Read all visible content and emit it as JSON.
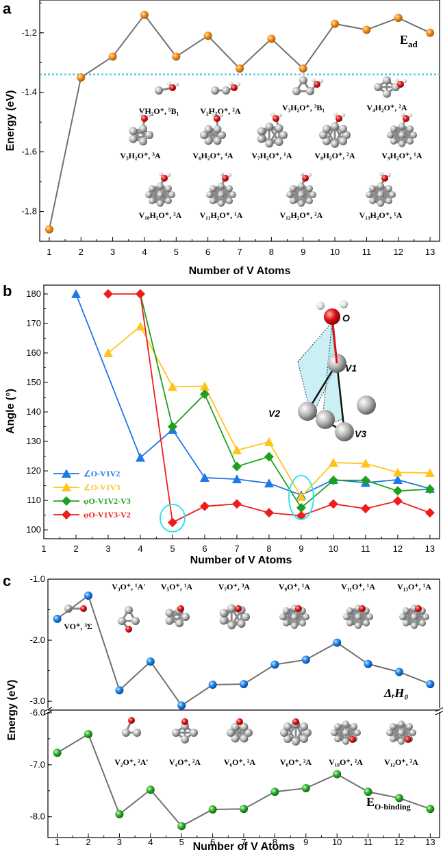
{
  "panels": {
    "a": {
      "label": "a",
      "annotation": "E",
      "annotation_sub": "ad",
      "molecule_labels": [
        "VH₂O⁺, ⁵B₁",
        "V₂H₂O⁺, ²A",
        "V₃H₂O⁺, ³B₁",
        "V₄H₂O⁺, ²A",
        "V₅H₂O⁺, ³A",
        "V₆H₂O⁺, ⁴A",
        "V₇H₂O⁺, ¹A",
        "V₈H₂O⁺, ²A",
        "V₉H₂O⁺, ¹A",
        "V₁₀H₂O⁺, ²A",
        "V₁₁H₂O⁺, ¹A",
        "V₁₂H₂O⁺, ²A",
        "V₁₃H₂O⁺, ¹A"
      ]
    },
    "b": {
      "label": "b",
      "atom_labels": [
        "O",
        "V1",
        "V2",
        "V3"
      ]
    },
    "c": {
      "label": "c",
      "annotation_top": "ΔᵣH₀",
      "annotation_bottom": "E",
      "annotation_bottom_sub": "O-binding",
      "molecule_labels_top": [
        "VO⁺, ³Σ",
        "V₃O⁺, ¹A′",
        "V₅O⁺, ¹A",
        "V₇O⁺, ³A",
        "V₉O⁺, ¹A",
        "V₁₁O⁺, ¹A",
        "V₁₃O⁺, ¹A"
      ],
      "molecule_labels_bottom": [
        "V₂O⁺, ²A′",
        "V₄O⁺, ²A",
        "V₆O⁺, ²A",
        "V₈O⁺, ²A",
        "V₁₀O⁺, ²A",
        "V₁₂O⁺, ²A"
      ]
    }
  },
  "chart_data": [
    {
      "type": "line",
      "panel": "a",
      "xlabel": "Number of V Atoms",
      "ylabel": "Energy (eV)",
      "x": [
        1,
        2,
        3,
        4,
        5,
        6,
        7,
        8,
        9,
        10,
        11,
        12,
        13
      ],
      "xlim": [
        0.7,
        13.3
      ],
      "ylim": [
        -1.9,
        -1.09
      ],
      "yticks": [
        -1.8,
        -1.6,
        -1.4,
        -1.2
      ],
      "ytick_labels": [
        "-1.8",
        "-1.6",
        "-1.4",
        "-1.2"
      ],
      "xticks": [
        1,
        2,
        3,
        4,
        5,
        6,
        7,
        8,
        9,
        10,
        11,
        12,
        13
      ],
      "series": [
        {
          "values": [
            -1.86,
            -1.35,
            -1.28,
            -1.14,
            -1.28,
            -1.21,
            -1.32,
            -1.22,
            -1.32,
            -1.17,
            -1.19,
            -1.15,
            -1.2
          ],
          "color": "#f5921e",
          "marker": "circle"
        }
      ],
      "reference_line": {
        "y": -1.34,
        "color": "#55c9e8",
        "style": "dotted"
      }
    },
    {
      "type": "line",
      "panel": "b",
      "xlabel": "Number of V Atoms",
      "ylabel": "Angle (°)",
      "x": [
        1,
        2,
        3,
        4,
        5,
        6,
        7,
        8,
        9,
        10,
        11,
        12,
        13
      ],
      "xlim": [
        1,
        13.3
      ],
      "ylim": [
        97,
        183
      ],
      "yticks": [
        100,
        110,
        120,
        130,
        140,
        150,
        160,
        170,
        180
      ],
      "ytick_labels": [
        "100",
        "110",
        "120",
        "130",
        "140",
        "150",
        "160",
        "170",
        "180"
      ],
      "xticks": [
        1,
        2,
        3,
        4,
        5,
        6,
        7,
        8,
        9,
        10,
        11,
        12,
        13
      ],
      "legend_position": "bottom-left",
      "series": [
        {
          "name": "∠O-V1V2",
          "x": [
            2,
            4,
            5,
            6,
            7,
            8,
            9,
            10,
            11,
            12,
            13
          ],
          "values": [
            180,
            124.5,
            134,
            117.7,
            117.2,
            115.8,
            111.8,
            117,
            116,
            117,
            114
          ],
          "color": "#1e78e6",
          "marker": "triangle"
        },
        {
          "name": "∠O-V1V3",
          "x": [
            3,
            4,
            5,
            6,
            7,
            8,
            9,
            10,
            11,
            12,
            13
          ],
          "values": [
            160,
            169,
            148.5,
            148.7,
            127,
            129.8,
            111.2,
            122.8,
            122.5,
            119.5,
            119.3
          ],
          "color": "#ffc41c",
          "marker": "triangle"
        },
        {
          "name": "φO-V1V2-V3",
          "x": [
            4,
            5,
            6,
            7,
            8,
            9,
            10,
            11,
            12,
            13
          ],
          "values": [
            180,
            135,
            146,
            121.5,
            124.8,
            107.5,
            116.8,
            116.8,
            113.2,
            113.8
          ],
          "color": "#1ea01e",
          "marker": "diamond"
        },
        {
          "name": "φO-V1V3-V2",
          "x": [
            3,
            4,
            5,
            6,
            7,
            8,
            9,
            10,
            11,
            12,
            13
          ],
          "values": [
            180,
            180,
            102.5,
            108,
            108.8,
            105.8,
            104.8,
            108.8,
            107.2,
            109.8,
            105.8
          ],
          "color": "#ee1c1c",
          "marker": "diamond"
        }
      ],
      "highlight_circles": [
        {
          "x": 5,
          "y": 104
        },
        {
          "x": 9,
          "y": 111
        }
      ]
    },
    {
      "type": "line",
      "panel": "c-top",
      "ylabel": "Energy (eV)",
      "x": [
        1,
        2,
        3,
        4,
        5,
        6,
        7,
        8,
        9,
        10,
        11,
        12,
        13
      ],
      "xlim": [
        0.7,
        13.3
      ],
      "ylim": [
        -3.1,
        -1.0
      ],
      "yticks": [
        -3.0,
        -2.0,
        -1.0
      ],
      "ytick_labels": [
        "-3.0",
        "-2.0",
        "-1.0"
      ],
      "series": [
        {
          "values": [
            -1.65,
            -1.27,
            -2.82,
            -2.35,
            -3.07,
            -2.73,
            -2.72,
            -2.4,
            -2.32,
            -2.04,
            -2.39,
            -2.52,
            -2.72
          ],
          "color": "#1e88ee",
          "marker": "circle"
        }
      ]
    },
    {
      "type": "line",
      "panel": "c-bottom",
      "xlabel": "Number of V Atoms",
      "ylabel": "Energy (eV)",
      "x": [
        1,
        2,
        3,
        4,
        5,
        6,
        7,
        8,
        9,
        10,
        11,
        12,
        13
      ],
      "xlim": [
        0.7,
        13.3
      ],
      "ylim": [
        -8.4,
        -6.0
      ],
      "yticks": [
        -8.0,
        -7.0,
        -6.0
      ],
      "ytick_labels": [
        "-8.0",
        "-7.0",
        "-6.0"
      ],
      "xticks": [
        1,
        2,
        3,
        4,
        5,
        6,
        7,
        8,
        9,
        10,
        11,
        12,
        13
      ],
      "series": [
        {
          "values": [
            -6.77,
            -6.41,
            -7.95,
            -7.48,
            -8.18,
            -7.86,
            -7.85,
            -7.52,
            -7.45,
            -7.18,
            -7.52,
            -7.64,
            -7.85
          ],
          "color": "#2eb52e",
          "marker": "circle"
        }
      ]
    }
  ]
}
